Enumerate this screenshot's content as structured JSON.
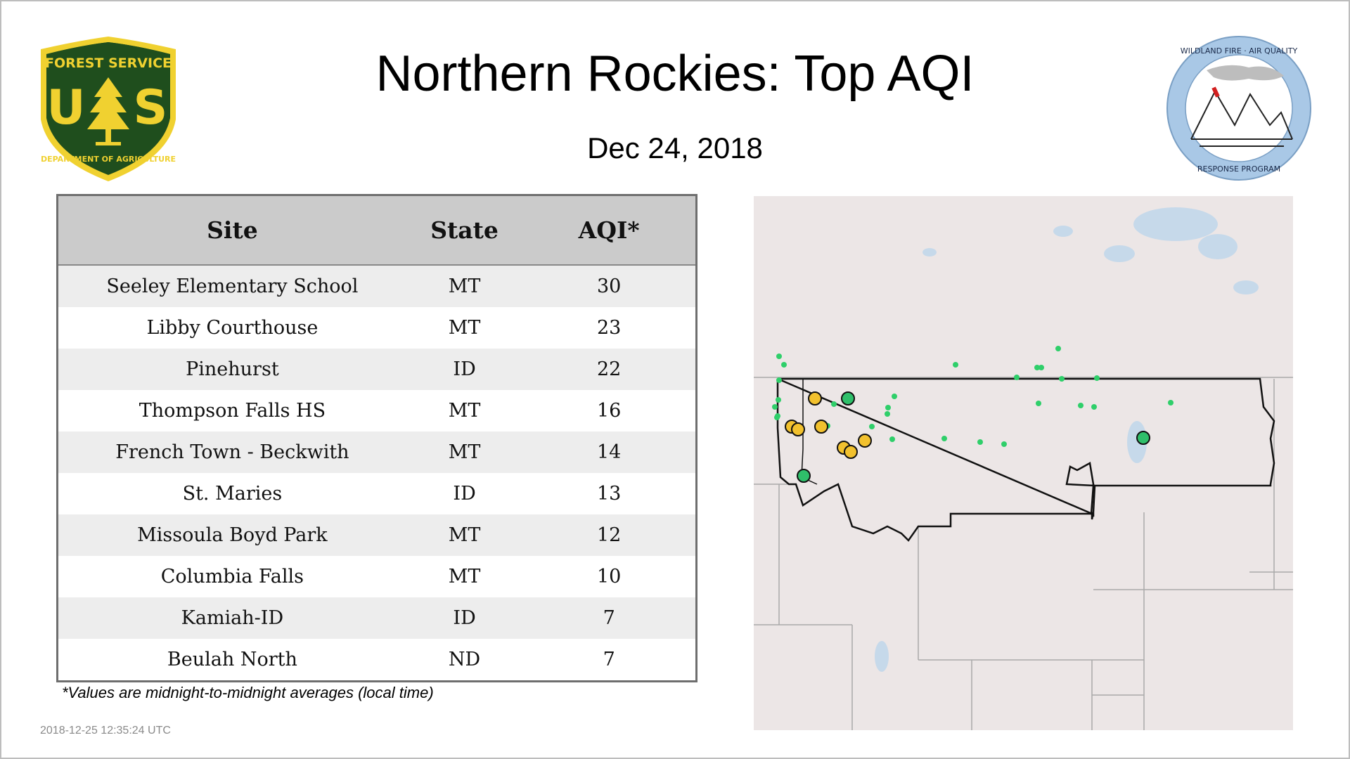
{
  "header": {
    "title": "Northern Rockies: Top AQI",
    "date": "Dec 24, 2018"
  },
  "logos": {
    "forest_service": {
      "top_text": "FOREST SERVICE",
      "initials": "US",
      "bottom_text": "DEPARTMENT OF AGRICULTURE",
      "icon": "pine-tree-shield-icon",
      "color_green": "#1f4e1d",
      "color_gold": "#f0d130"
    },
    "wildland_fire": {
      "top_text": "WILDLAND FIRE · AIR QUALITY",
      "bottom_text": "RESPONSE PROGRAM",
      "icon": "mountains-smoke-icon",
      "color_ring": "#a9c8e6"
    }
  },
  "table": {
    "columns": [
      "Site",
      "State",
      "AQI*"
    ],
    "rows": [
      {
        "site": "Seeley Elementary School",
        "state": "MT",
        "aqi": "30"
      },
      {
        "site": "Libby Courthouse",
        "state": "MT",
        "aqi": "23"
      },
      {
        "site": "Pinehurst",
        "state": "ID",
        "aqi": "22"
      },
      {
        "site": "Thompson Falls HS",
        "state": "MT",
        "aqi": "16"
      },
      {
        "site": "French Town - Beckwith",
        "state": "MT",
        "aqi": "14"
      },
      {
        "site": "St. Maries",
        "state": "ID",
        "aqi": "13"
      },
      {
        "site": "Missoula Boyd Park",
        "state": "MT",
        "aqi": "12"
      },
      {
        "site": "Columbia Falls",
        "state": "MT",
        "aqi": "10"
      },
      {
        "site": "Kamiah-ID",
        "state": "ID",
        "aqi": "7"
      },
      {
        "site": "Beulah North",
        "state": "ND",
        "aqi": "7"
      }
    ]
  },
  "footnote": "*Values are midnight-to-midnight averages (local time)",
  "timestamp": "2018-12-25 12:35:24 UTC",
  "map": {
    "colors": {
      "land": "#ece6e6",
      "water": "#c6d9ea",
      "border": "#111111",
      "neighbor_border": "#a9a9a9",
      "monitor_small": "#2fcf6a",
      "aqi_moderate": "#f2c12e",
      "aqi_good": "#2fbf6a"
    },
    "top_site_markers": [
      {
        "rank": 1,
        "category": "good"
      },
      {
        "rank": 2,
        "category": "good"
      },
      {
        "rank": 3,
        "category": "good"
      }
    ]
  }
}
